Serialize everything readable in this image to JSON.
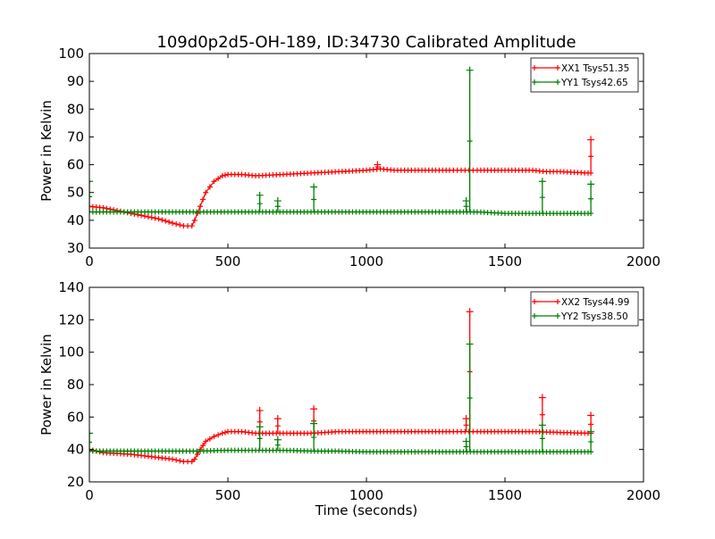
{
  "title": "109d0p2d5-OH-189, ID:34730 Calibrated Amplitude",
  "colors": {
    "xx": "#ff0000",
    "yy": "#008000"
  },
  "chart_data": [
    {
      "type": "line",
      "xlabel": "",
      "ylabel": "Power in Kelvin",
      "xlim": [
        0,
        2000
      ],
      "ylim": [
        30,
        100
      ],
      "xticks": [
        0,
        500,
        1000,
        1500,
        2000
      ],
      "yticks": [
        30,
        40,
        50,
        60,
        70,
        80,
        90,
        100
      ],
      "legend_position": "top-right",
      "series": [
        {
          "name": "XX1 Tsys51.35",
          "color": "#ff0000",
          "marker": "+",
          "x": [
            0,
            50,
            100,
            150,
            200,
            250,
            300,
            340,
            370,
            380,
            400,
            420,
            450,
            480,
            500,
            550,
            600,
            700,
            800,
            900,
            1000,
            1050,
            1100,
            1200,
            1300,
            1370,
            1400,
            1500,
            1600,
            1650,
            1700,
            1800,
            1810
          ],
          "y": [
            45,
            44.5,
            43.5,
            42.5,
            41.5,
            40.5,
            39,
            38,
            38,
            40,
            45,
            50,
            54,
            56,
            56.5,
            56.5,
            56,
            56.5,
            57,
            57.5,
            58,
            58.5,
            58,
            58,
            58,
            58,
            58,
            58,
            58,
            57.5,
            57.5,
            57,
            57
          ],
          "spikes": [
            {
              "x": 1040,
              "y": 60
            },
            {
              "x": 1810,
              "y": 69
            }
          ]
        },
        {
          "name": "YY1 Tsys42.65",
          "color": "#008000",
          "marker": "+",
          "x": [
            0,
            100,
            200,
            300,
            400,
            500,
            600,
            700,
            800,
            900,
            1000,
            1100,
            1200,
            1300,
            1400,
            1500,
            1600,
            1700,
            1800,
            1810
          ],
          "y": [
            43,
            43,
            43,
            43,
            43,
            43,
            43,
            43,
            43,
            43,
            43,
            43,
            43,
            43,
            43,
            42.5,
            42.5,
            42.5,
            42.5,
            42.5
          ],
          "spikes": [
            {
              "x": 0,
              "y": 54
            },
            {
              "x": 615,
              "y": 49
            },
            {
              "x": 680,
              "y": 47
            },
            {
              "x": 810,
              "y": 52
            },
            {
              "x": 1360,
              "y": 47
            },
            {
              "x": 1373,
              "y": 94
            },
            {
              "x": 1635,
              "y": 54
            },
            {
              "x": 1810,
              "y": 53
            }
          ]
        }
      ]
    },
    {
      "type": "line",
      "xlabel": "Time (seconds)",
      "ylabel": "Power in Kelvin",
      "xlim": [
        0,
        2000
      ],
      "ylim": [
        20,
        140
      ],
      "xticks": [
        0,
        500,
        1000,
        1500,
        2000
      ],
      "yticks": [
        20,
        40,
        60,
        80,
        100,
        120,
        140
      ],
      "legend_position": "top-right",
      "series": [
        {
          "name": "XX2 Tsys44.99",
          "color": "#ff0000",
          "marker": "+",
          "x": [
            0,
            50,
            100,
            150,
            200,
            250,
            300,
            340,
            370,
            380,
            400,
            420,
            450,
            480,
            500,
            550,
            600,
            700,
            800,
            900,
            1000,
            1100,
            1200,
            1300,
            1370,
            1400,
            1500,
            1600,
            1700,
            1800,
            1810
          ],
          "y": [
            40,
            38,
            37.5,
            37,
            36,
            35,
            34,
            32.5,
            32.5,
            34,
            40,
            45,
            48,
            50,
            51,
            51,
            50,
            50,
            50,
            51,
            51,
            51,
            51,
            51,
            51,
            51,
            51,
            51,
            50.5,
            50,
            50
          ],
          "spikes": [
            {
              "x": 615,
              "y": 64
            },
            {
              "x": 680,
              "y": 59
            },
            {
              "x": 810,
              "y": 65
            },
            {
              "x": 1360,
              "y": 59
            },
            {
              "x": 1373,
              "y": 125
            },
            {
              "x": 1635,
              "y": 72
            },
            {
              "x": 1810,
              "y": 61
            }
          ]
        },
        {
          "name": "YY2 Tsys38.50",
          "color": "#008000",
          "marker": "+",
          "x": [
            0,
            100,
            200,
            300,
            400,
            500,
            600,
            700,
            800,
            900,
            1000,
            1100,
            1200,
            1300,
            1400,
            1500,
            1600,
            1700,
            1800,
            1810
          ],
          "y": [
            39,
            39,
            39,
            39,
            39,
            39.5,
            39.5,
            39.5,
            39,
            39,
            38.5,
            38.5,
            38.5,
            38.5,
            38.5,
            38.5,
            38.5,
            38.5,
            38.5,
            38.5
          ],
          "spikes": [
            {
              "x": 0,
              "y": 50
            },
            {
              "x": 615,
              "y": 54
            },
            {
              "x": 680,
              "y": 46
            },
            {
              "x": 810,
              "y": 56
            },
            {
              "x": 1360,
              "y": 45
            },
            {
              "x": 1373,
              "y": 105
            },
            {
              "x": 1635,
              "y": 55
            },
            {
              "x": 1810,
              "y": 51
            }
          ]
        }
      ]
    }
  ]
}
